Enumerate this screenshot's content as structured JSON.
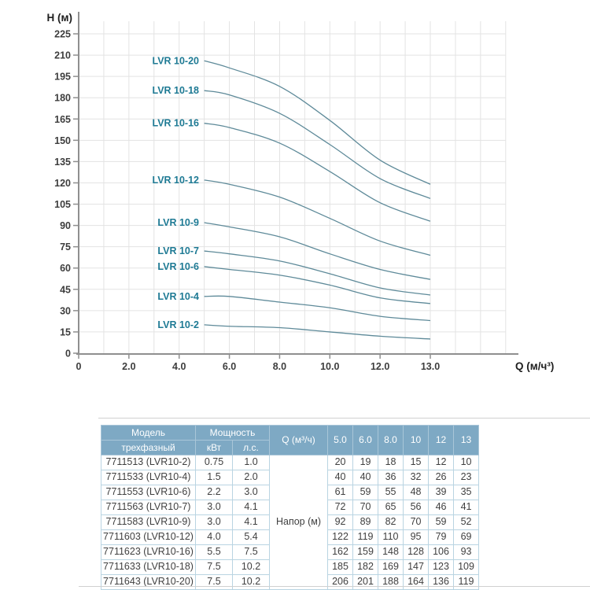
{
  "colors": {
    "curve": "#5e8a99",
    "curve_label": "#1e7a94",
    "axis": "#8f8f8f",
    "grid": "#e3e3e3",
    "tick_text": "#3d3d3d",
    "axis_title_text": "#1f1f1f",
    "table_header_bg": "#7ea9c4",
    "table_header_border": "#a9c6d8",
    "table_header_text": "#ffffff",
    "table_border": "#b9d4e2",
    "table_text": "#3f3f3f",
    "divider": "#d0d0d0"
  },
  "chart_data": {
    "type": "line",
    "title": "",
    "xlabel": "Q (м/ч³)",
    "ylabel": "H (м)",
    "x_tick_labels": [
      "0",
      "2.0",
      "4.0",
      "6.0",
      "8.0",
      "10.0",
      "12.0",
      "13.0"
    ],
    "x_tick_values": [
      0,
      2,
      4,
      6,
      8,
      10,
      12,
      13
    ],
    "y_ticks": [
      0,
      15,
      30,
      45,
      60,
      75,
      90,
      105,
      120,
      135,
      150,
      165,
      180,
      195,
      210,
      225
    ],
    "ylim": [
      0,
      225
    ],
    "grid": true,
    "legend_position": "inline-left",
    "x": [
      5,
      6,
      8,
      10,
      12,
      13
    ],
    "series": [
      {
        "name": "LVR 10-2",
        "values": [
          20,
          19,
          18,
          15,
          12,
          10
        ]
      },
      {
        "name": "LVR 10-4",
        "values": [
          40,
          40,
          36,
          32,
          26,
          23
        ]
      },
      {
        "name": "LVR 10-6",
        "values": [
          61,
          59,
          55,
          48,
          39,
          35
        ]
      },
      {
        "name": "LVR 10-7",
        "values": [
          72,
          70,
          65,
          56,
          46,
          41
        ]
      },
      {
        "name": "LVR 10-9",
        "values": [
          92,
          89,
          82,
          70,
          59,
          52
        ]
      },
      {
        "name": "LVR 10-12",
        "values": [
          122,
          119,
          110,
          95,
          79,
          69
        ]
      },
      {
        "name": "LVR 10-16",
        "values": [
          162,
          159,
          148,
          128,
          106,
          93
        ]
      },
      {
        "name": "LVR 10-18",
        "values": [
          185,
          182,
          169,
          147,
          123,
          109
        ]
      },
      {
        "name": "LVR 10-20",
        "values": [
          206,
          201,
          188,
          164,
          136,
          119
        ]
      }
    ]
  },
  "table": {
    "header": {
      "model": "Модель",
      "model_sub": "трехфазный",
      "power": "Мощность",
      "power_kw": "кВт",
      "power_hp": "л.с.",
      "q_label": "Q (м³/ч)",
      "flow_cols": [
        "5.0",
        "6.0",
        "8.0",
        "10",
        "12",
        "13"
      ]
    },
    "napor_label": "Напор (м)",
    "rows": [
      {
        "model": "7711513 (LVR10-2)",
        "kw": "0.75",
        "hp": "1.0",
        "values": [
          "20",
          "19",
          "18",
          "15",
          "12",
          "10"
        ]
      },
      {
        "model": "7711533 (LVR10-4)",
        "kw": "1.5",
        "hp": "2.0",
        "values": [
          "40",
          "40",
          "36",
          "32",
          "26",
          "23"
        ]
      },
      {
        "model": "7711553 (LVR10-6)",
        "kw": "2.2",
        "hp": "3.0",
        "values": [
          "61",
          "59",
          "55",
          "48",
          "39",
          "35"
        ]
      },
      {
        "model": "7711563 (LVR10-7)",
        "kw": "3.0",
        "hp": "4.1",
        "values": [
          "72",
          "70",
          "65",
          "56",
          "46",
          "41"
        ]
      },
      {
        "model": "7711583 (LVR10-9)",
        "kw": "3.0",
        "hp": "4.1",
        "values": [
          "92",
          "89",
          "82",
          "70",
          "59",
          "52"
        ]
      },
      {
        "model": "7711603 (LVR10-12)",
        "kw": "4.0",
        "hp": "5.4",
        "values": [
          "122",
          "119",
          "110",
          "95",
          "79",
          "69"
        ]
      },
      {
        "model": "7711623 (LVR10-16)",
        "kw": "5.5",
        "hp": "7.5",
        "values": [
          "162",
          "159",
          "148",
          "128",
          "106",
          "93"
        ]
      },
      {
        "model": "7711633 (LVR10-18)",
        "kw": "7.5",
        "hp": "10.2",
        "values": [
          "185",
          "182",
          "169",
          "147",
          "123",
          "109"
        ]
      },
      {
        "model": "7711643 (LVR10-20)",
        "kw": "7.5",
        "hp": "10.2",
        "values": [
          "206",
          "201",
          "188",
          "164",
          "136",
          "119"
        ]
      }
    ]
  }
}
